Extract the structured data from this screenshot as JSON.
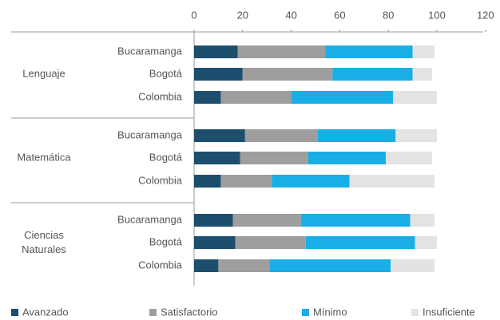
{
  "chart_data": {
    "type": "stacked_barh",
    "groups": [
      {
        "label": "Lenguaje",
        "categories": [
          "Bucaramanga",
          "Bogotá",
          "Colombia"
        ]
      },
      {
        "label": "Matemática",
        "categories": [
          "Bucaramanga",
          "Bogotá",
          "Colombia"
        ]
      },
      {
        "label": "Ciencias Naturales",
        "categories": [
          "Bucaramanga",
          "Bogotá",
          "Colombia"
        ]
      }
    ],
    "series": [
      {
        "name": "Avanzado",
        "color": "#1d4e6e",
        "values": [
          18,
          20,
          11,
          21,
          19,
          11,
          16,
          17,
          10
        ]
      },
      {
        "name": "Satisfactorio",
        "color": "#9e9e9e",
        "values": [
          36,
          37,
          29,
          30,
          28,
          21,
          28,
          29,
          21
        ]
      },
      {
        "name": "Mínimo",
        "color": "#1aaee6",
        "values": [
          36,
          33,
          42,
          32,
          32,
          32,
          45,
          45,
          50
        ]
      },
      {
        "name": "Insuficiente",
        "color": "#e3e3e3",
        "values": [
          9,
          8,
          18,
          17,
          19,
          35,
          10,
          9,
          18
        ]
      }
    ],
    "xlim": [
      0,
      120
    ],
    "xticks": [
      0,
      20,
      40,
      60,
      80,
      100,
      120
    ]
  }
}
